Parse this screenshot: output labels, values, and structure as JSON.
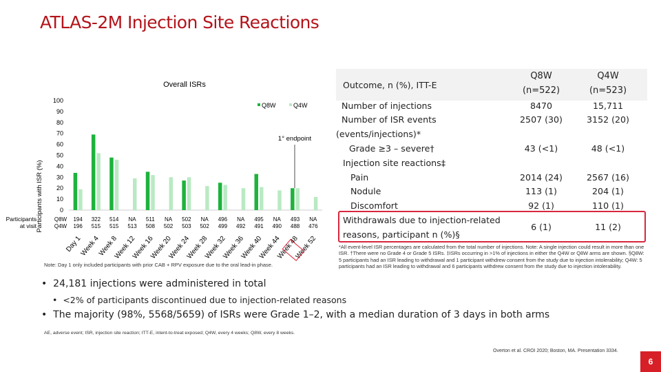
{
  "page": {
    "title": "ATLAS-2M Injection Site Reactions",
    "page_number": "6"
  },
  "colors": {
    "title": "#b3141b",
    "q8w_bar": "#1db33c",
    "q4w_bar": "#b9eac3",
    "highlight_box": "#d7263d",
    "page_badge": "#d71f27"
  },
  "chart_data": {
    "type": "bar",
    "title": "Overall ISRs",
    "ylabel": "Participants with ISR (%)",
    "ylim": [
      0,
      100
    ],
    "yticks": [
      0,
      10,
      20,
      30,
      40,
      50,
      60,
      70,
      80,
      90,
      100
    ],
    "categories": [
      "Day 1",
      "Week 4",
      "Week 8",
      "Week 12",
      "Week 16",
      "Week 20",
      "Week 24",
      "Week 28",
      "Week 32",
      "Week 36",
      "Week 40",
      "Week 44",
      "Week 48",
      "Week 52"
    ],
    "series": [
      {
        "name": "Q8W",
        "values": [
          34,
          69,
          48,
          null,
          35,
          null,
          27,
          null,
          25,
          null,
          33,
          null,
          20,
          null
        ]
      },
      {
        "name": "Q4W",
        "values": [
          19,
          52,
          46,
          29,
          32,
          30,
          30,
          22,
          23,
          20,
          21,
          18,
          20,
          12
        ]
      }
    ],
    "annotation": "1° endpoint",
    "participants_label": "Participants at visit",
    "participants": {
      "Q8W": [
        "194",
        "322",
        "514",
        "NA",
        "511",
        "NA",
        "502",
        "NA",
        "496",
        "NA",
        "495",
        "NA",
        "493",
        "NA"
      ],
      "Q4W": [
        "196",
        "515",
        "515",
        "513",
        "508",
        "502",
        "503",
        "502",
        "499",
        "492",
        "491",
        "490",
        "488",
        "476"
      ]
    },
    "legend": [
      "Q8W",
      "Q4W"
    ],
    "legend_position": "top-right"
  },
  "chart_note": "Note: Day 1 only included participants with prior CAB + RPV exposure due to the oral lead-in phase.",
  "table": {
    "header_label": "Outcome, n (%), ITT-E",
    "col_q8w": [
      "Q8W",
      "(n=522)"
    ],
    "col_q4w": [
      "Q4W",
      "(n=523)"
    ],
    "rows": [
      {
        "label": "Number of injections",
        "q8w": "8470",
        "q4w": "15,711"
      },
      {
        "label": "Number of ISR events",
        "q8w": "2507 (30)",
        "q4w": "3152 (20)"
      },
      {
        "label": "(events/injections)*",
        "q8w": "",
        "q4w": ""
      },
      {
        "label": "Grade ≥3 – severe†",
        "q8w": "43 (<1)",
        "q4w": "48 (<1)"
      },
      {
        "label": "Injection site reactions‡",
        "q8w": "",
        "q4w": ""
      },
      {
        "label": "Pain",
        "q8w": "2014 (24)",
        "q4w": "2567 (16)"
      },
      {
        "label": "Nodule",
        "q8w": "113 (1)",
        "q4w": "204 (1)"
      },
      {
        "label": "Discomfort",
        "q8w": "92 (1)",
        "q4w": "110 (1)"
      },
      {
        "label": "Withdrawals due to injection-related",
        "q8w": "6 (1)",
        "q4w": "11 (2)"
      },
      {
        "label": "reasons, participant n (%)§",
        "q8w": "",
        "q4w": ""
      }
    ]
  },
  "footnote": "*All event-level ISR percentages are calculated from the total number of injections. Note: A single injection could result in more than one ISR. †There were no Grade 4 or Grade 5 ISRs. ‡ISRs occurring in >1% of injections in either the Q4W or Q8W arms are shown. §Q8W: 5 participants had an ISR leading to withdrawal and 1 participant withdrew consent from the study due to injection intolerability; Q4W: 5 participants had an ISR leading to withdrawal and 6 participants withdrew consent from the study due to injection intolerability.",
  "bullets": [
    "24,181 injections were administered in total",
    "<2% of participants discontinued due to injection-related reasons",
    "The majority (98%, 5568/5659) of ISRs were Grade 1–2, with a median duration of 3 days in both arms"
  ],
  "abbreviations": "AE, adverse event; ISR, injection site reaction; ITT-E, intent-to-treat exposed; Q4W, every 4 weeks; Q8W, every 8 weeks.",
  "citation": "Overton et al. CROI 2020; Boston, MA. Presentation 3334."
}
